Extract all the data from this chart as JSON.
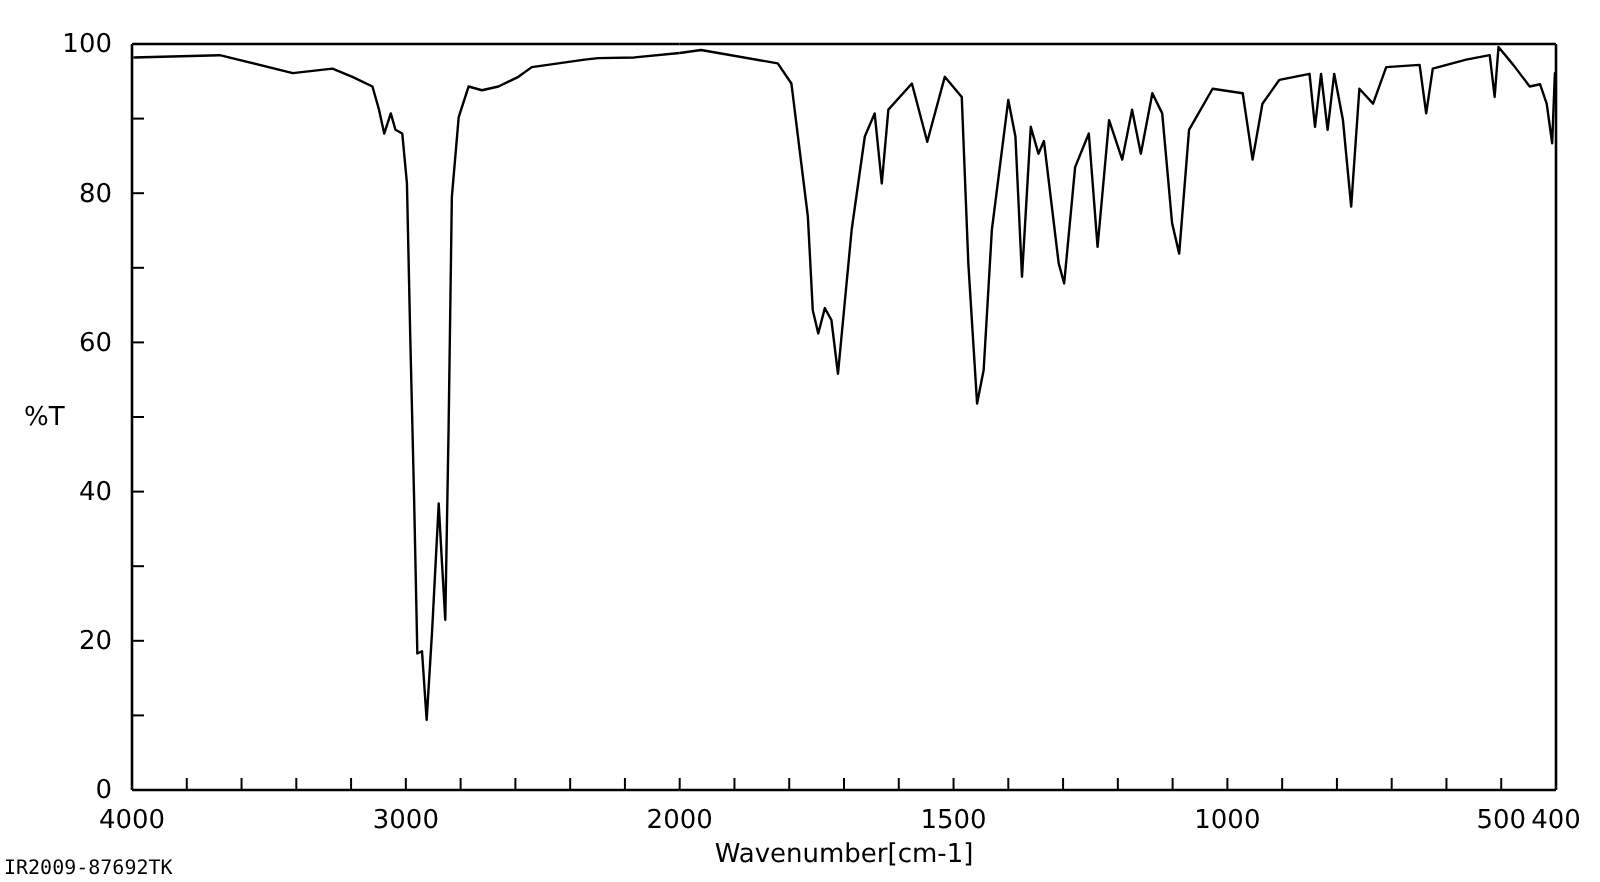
{
  "chart_data": [
    {
      "type": "line",
      "ylabel": "%T",
      "annotations": [
        "IR2009-87692TK"
      ],
      "xlim": [
        4000,
        2000
      ],
      "ylim": [
        0,
        100
      ],
      "xticks": [
        4000,
        {
          "value": 3800,
          "label": null
        },
        {
          "value": 3600,
          "label": null
        },
        {
          "value": 3400,
          "label": null
        },
        {
          "value": 3200,
          "label": null
        },
        3000,
        {
          "value": 2800,
          "label": null
        },
        {
          "value": 2600,
          "label": null
        },
        {
          "value": 2400,
          "label": null
        },
        {
          "value": 2200,
          "label": null
        }
      ],
      "yticks": [
        0,
        {
          "value": 10,
          "label": null
        },
        20,
        {
          "value": 30,
          "label": null
        },
        40,
        {
          "value": 50,
          "label": null
        },
        60,
        {
          "value": 70,
          "label": null
        },
        80,
        {
          "value": 90,
          "label": null
        },
        100
      ],
      "grid": false,
      "marker": "none",
      "line_style": "solid",
      "series": [
        {
          "color": "#000000",
          "x": [
            3995,
            3680,
            3413,
            3268,
            3195,
            3122,
            3098,
            3079,
            3055,
            3038,
            3013,
            2996,
            2984,
            2970,
            2958,
            2941,
            2924,
            2904,
            2880,
            2868,
            2856,
            2844,
            2832,
            2807,
            2771,
            2722,
            2662,
            2589,
            2540,
            2347,
            2298,
            2165,
            2000
          ],
          "values": [
            98.2,
            98.5,
            96.1,
            96.7,
            95.6,
            94.3,
            91.2,
            88.0,
            90.7,
            88.5,
            88.0,
            81.3,
            60.9,
            39.3,
            18.3,
            18.6,
            9.4,
            21.4,
            38.4,
            30.4,
            22.8,
            48.3,
            79.5,
            90.2,
            94.3,
            93.8,
            94.3,
            95.6,
            96.9,
            97.9,
            98.1,
            98.2,
            98.8
          ]
        }
      ]
    },
    {
      "type": "line",
      "xlabel": "Wavenumber[cm-1]",
      "tick_labels": "x",
      "xlim": [
        2000,
        400
      ],
      "ylim": [
        0,
        100
      ],
      "xticks": [
        2000,
        {
          "value": 1900,
          "label": null
        },
        {
          "value": 1800,
          "label": null
        },
        {
          "value": 1700,
          "label": null
        },
        {
          "value": 1600,
          "label": null
        },
        1500,
        {
          "value": 1400,
          "label": null
        },
        {
          "value": 1300,
          "label": null
        },
        {
          "value": 1200,
          "label": null
        },
        {
          "value": 1100,
          "label": null
        },
        1000,
        {
          "value": 900,
          "label": null
        },
        {
          "value": 800,
          "label": null
        },
        {
          "value": 700,
          "label": null
        },
        {
          "value": 600,
          "label": null
        },
        500,
        400
      ],
      "grid": false,
      "marker": "none",
      "line_style": "solid",
      "series": [
        {
          "color": "#000000",
          "x": [
            2000,
            1961,
            1821,
            1796,
            1778,
            1766,
            1757,
            1747,
            1735,
            1723,
            1711,
            1686,
            1662,
            1644,
            1631,
            1619,
            1576,
            1548,
            1516,
            1485,
            1473,
            1457,
            1445,
            1430,
            1400,
            1387,
            1375,
            1359,
            1345,
            1335,
            1308,
            1298,
            1278,
            1253,
            1237,
            1216,
            1192,
            1174,
            1158,
            1137,
            1119,
            1101,
            1088,
            1070,
            1027,
            972,
            954,
            936,
            905,
            850,
            840,
            829,
            817,
            805,
            789,
            774,
            759,
            734,
            710,
            649,
            637,
            625,
            564,
            521,
            512,
            505,
            478,
            448,
            429,
            417,
            407,
            402,
            400
          ],
          "values": [
            98.8,
            99.2,
            97.4,
            94.7,
            84.0,
            76.9,
            64.3,
            61.2,
            64.6,
            63.0,
            55.8,
            75.1,
            87.6,
            90.7,
            81.3,
            91.2,
            94.7,
            86.9,
            95.6,
            92.9,
            70.6,
            51.8,
            56.3,
            75.1,
            92.5,
            87.6,
            68.8,
            88.9,
            85.3,
            87.0,
            70.6,
            67.9,
            83.5,
            88.0,
            72.8,
            89.8,
            84.5,
            91.2,
            85.3,
            93.4,
            90.7,
            76.0,
            71.9,
            88.5,
            94.0,
            93.4,
            84.5,
            92.0,
            95.2,
            96.0,
            88.9,
            96.0,
            88.5,
            96.0,
            89.8,
            78.2,
            94.0,
            92.0,
            96.9,
            97.2,
            90.7,
            96.7,
            97.9,
            98.5,
            92.9,
            99.6,
            97.2,
            94.3,
            94.6,
            92.0,
            86.7,
            96.1,
            96.0
          ]
        }
      ]
    }
  ]
}
